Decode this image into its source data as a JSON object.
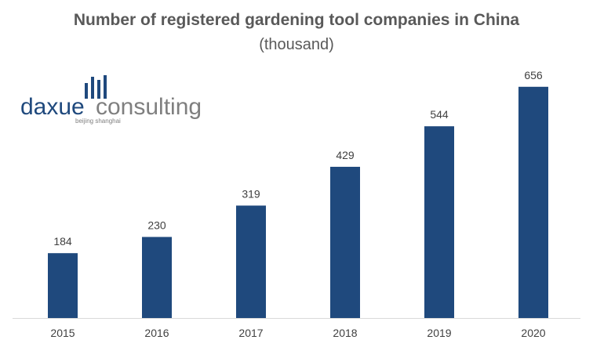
{
  "chart_data": {
    "type": "bar",
    "title": "Number of registered gardening tool companies in China",
    "subtitle": "(thousand)",
    "categories": [
      "2015",
      "2016",
      "2017",
      "2018",
      "2019",
      "2020"
    ],
    "values": [
      184,
      230,
      319,
      429,
      544,
      656
    ],
    "data_labels": [
      "184",
      "230",
      "319",
      "429",
      "544",
      "656"
    ],
    "bar_color": "#1f497d",
    "ylim": [
      0,
      720
    ],
    "grid": false,
    "legend": "none"
  },
  "logo": {
    "text_part1": "daxue",
    "text_part2": "consulting",
    "tagline": "beijing shanghai",
    "color_dark": "#1f497d",
    "color_gray": "#7f7f7f"
  }
}
